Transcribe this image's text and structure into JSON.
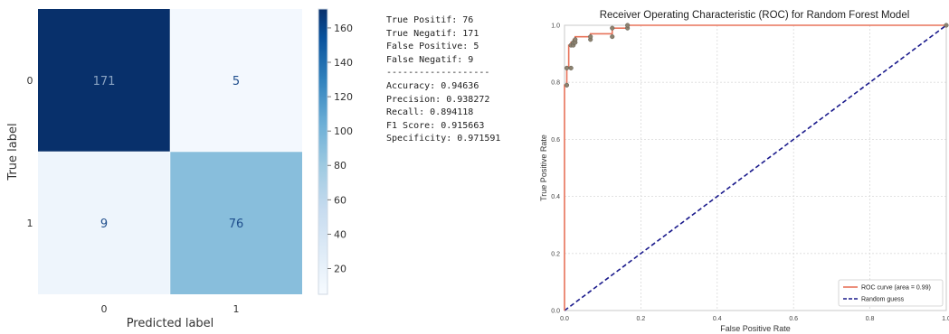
{
  "chart_data": [
    {
      "type": "heatmap",
      "title": "",
      "xlabel": "Predicted label",
      "ylabel": "True label",
      "x_categories": [
        "0",
        "1"
      ],
      "y_categories": [
        "0",
        "1"
      ],
      "values": [
        [
          171,
          5
        ],
        [
          9,
          76
        ]
      ],
      "cell_labels": [
        "171",
        "5",
        "9",
        "76"
      ],
      "colormap": "Blues",
      "colorbar": {
        "range": [
          5,
          171
        ],
        "ticks": [
          20,
          40,
          60,
          80,
          100,
          120,
          140,
          160
        ],
        "tick_labels": [
          "20",
          "40",
          "60",
          "80",
          "100",
          "120",
          "140",
          "160"
        ]
      },
      "colors": {
        "low": "#f7fbff",
        "mid": "#6baed6",
        "high": "#08306b",
        "cell_171": "#08306b",
        "cell_5": "#f3f8fe",
        "cell_9": "#eef5fc",
        "cell_76": "#88bedc"
      }
    },
    {
      "type": "line",
      "title": "Receiver Operating Characteristic (ROC) for Random Forest Model",
      "xlabel": "False Positive Rate",
      "ylabel": "True Positive Rate",
      "xlim": [
        0,
        1
      ],
      "ylim": [
        0,
        1
      ],
      "grid": true,
      "x_ticks": [
        "0.0",
        "0.2",
        "0.4",
        "0.6",
        "0.8",
        "1.0"
      ],
      "y_ticks": [
        "0.0",
        "0.2",
        "0.4",
        "0.6",
        "0.8",
        "1.0"
      ],
      "legend_position": "lower-right",
      "series": [
        {
          "name": "ROC curve (area = 0.99)",
          "color": "#e8735a",
          "style": "solid",
          "x": [
            0.0,
            0.0,
            0.006,
            0.006,
            0.011,
            0.011,
            0.017,
            0.017,
            0.023,
            0.023,
            0.028,
            0.028,
            0.068,
            0.068,
            0.125,
            0.125,
            0.165,
            0.165,
            1.0
          ],
          "y": [
            0.0,
            0.79,
            0.79,
            0.85,
            0.85,
            0.93,
            0.93,
            0.94,
            0.94,
            0.95,
            0.95,
            0.96,
            0.96,
            0.97,
            0.97,
            0.99,
            0.99,
            1.0,
            1.0
          ],
          "markers_x": [
            0.006,
            0.006,
            0.017,
            0.017,
            0.023,
            0.023,
            0.028,
            0.028,
            0.068,
            0.068,
            0.125,
            0.125,
            0.165,
            0.165,
            1.0
          ],
          "markers_y": [
            0.79,
            0.85,
            0.85,
            0.93,
            0.93,
            0.94,
            0.94,
            0.95,
            0.95,
            0.96,
            0.96,
            0.99,
            0.99,
            1.0,
            1.0
          ]
        },
        {
          "name": "Random guess",
          "color": "#1a1a8c",
          "style": "dashed",
          "x": [
            0,
            1
          ],
          "y": [
            0,
            1
          ]
        }
      ]
    }
  ],
  "metrics": {
    "lines": [
      "True Positif: 76",
      "True Negatif: 171",
      "False Positive: 5",
      "False Negatif: 9",
      "-------------------",
      "Accuracy: 0.94636",
      "Precision: 0.938272",
      "Recall: 0.894118",
      "F1 Score: 0.915663",
      "Specificity: 0.971591"
    ]
  }
}
